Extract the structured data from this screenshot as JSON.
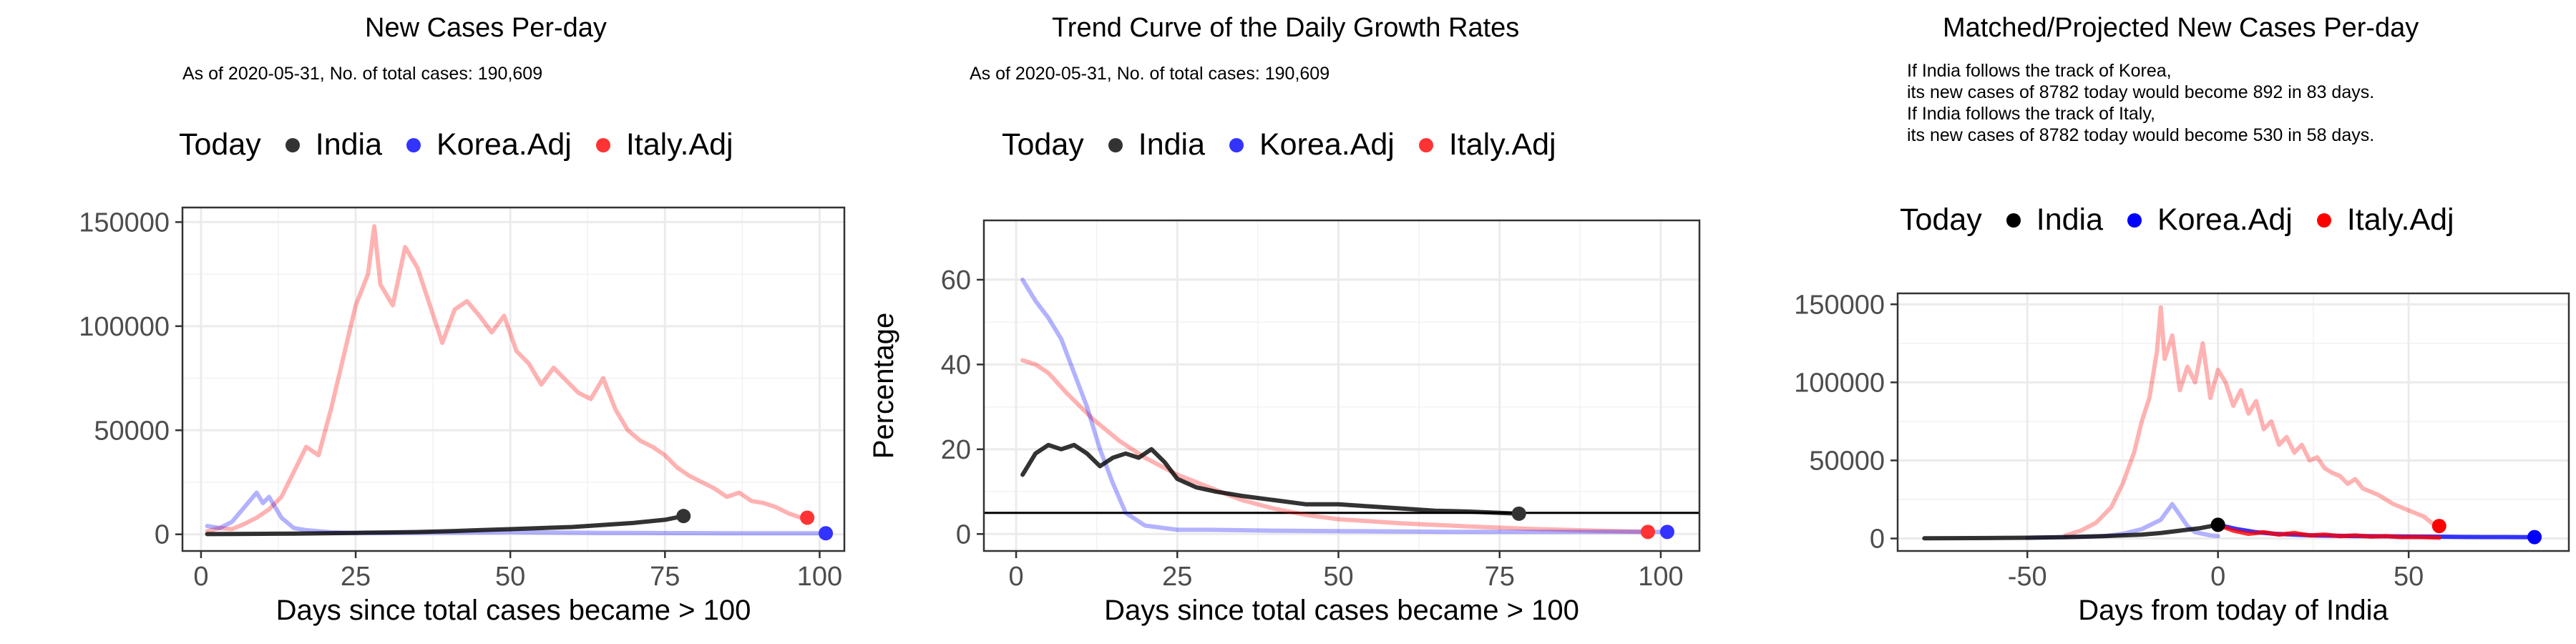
{
  "panels": [
    {
      "title": "New Cases Per-day",
      "subtitle": "As of 2020-05-31, No. of total cases: 190,609",
      "legend_title": "Today",
      "legend": [
        "India",
        "Korea.Adj",
        "Italy.Adj"
      ]
    },
    {
      "title": "Trend Curve of the Daily Growth Rates",
      "subtitle": "As of 2020-05-31, No. of total cases: 190,609",
      "legend_title": "Today",
      "legend": [
        "India",
        "Korea.Adj",
        "Italy.Adj"
      ]
    },
    {
      "title": "Matched/Projected New Cases Per-day",
      "subtitle_lines": [
        "If India follows the track of Korea,",
        "its new cases of 8782 today would become 892 in 83 days.",
        "If India follows the track of Italy,",
        "its new cases of 8782 today would become 530 in 58 days."
      ],
      "legend_title": "Today",
      "legend": [
        "India",
        "Korea.Adj",
        "Italy.Adj"
      ]
    }
  ],
  "colors": {
    "india": "#000000",
    "korea": "#0000ff",
    "italy": "#ff0000",
    "india_dot_panel12": "#333333",
    "korea_dot_panel12": "#3333ff",
    "italy_dot_panel12": "#ff3333",
    "grid": "#ebebeb",
    "tick_text": "#4d4d4d"
  },
  "chart_data": [
    {
      "type": "line",
      "title": "New Cases Per-day",
      "xlabel": "Days since total cases became > 100",
      "ylabel": "",
      "xlim": [
        -3,
        104
      ],
      "ylim": [
        -8000,
        157000
      ],
      "xticks": [
        0,
        25,
        50,
        75,
        100
      ],
      "yticks": [
        0,
        50000,
        100000,
        150000
      ],
      "ytick_labels": [
        "0",
        "50000",
        "100000",
        "150000"
      ],
      "grid": true,
      "legend": "top",
      "series": [
        {
          "name": "Italy.Adj",
          "color": "#ff0000",
          "opacity": 0.3,
          "x": [
            1,
            3,
            5,
            7,
            9,
            11,
            13,
            15,
            17,
            19,
            21,
            23,
            25,
            27,
            28,
            29,
            31,
            33,
            35,
            37,
            39,
            41,
            43,
            45,
            47,
            49,
            51,
            53,
            55,
            57,
            59,
            61,
            63,
            65,
            67,
            69,
            71,
            73,
            75,
            77,
            79,
            81,
            83,
            85,
            87,
            89,
            91,
            93,
            95,
            97
          ],
          "y": [
            1500,
            3000,
            2500,
            5000,
            8000,
            12000,
            18000,
            30000,
            42000,
            38000,
            60000,
            85000,
            110000,
            125000,
            148000,
            120000,
            110000,
            138000,
            128000,
            110000,
            92000,
            108000,
            112000,
            105000,
            97000,
            105000,
            88000,
            82000,
            72000,
            80000,
            74000,
            68000,
            65000,
            75000,
            60000,
            50000,
            45000,
            42000,
            38000,
            32000,
            28000,
            25000,
            22000,
            18000,
            20000,
            16000,
            15000,
            13000,
            10000,
            8000
          ]
        },
        {
          "name": "Korea.Adj",
          "color": "#0000ff",
          "opacity": 0.3,
          "x": [
            1,
            3,
            5,
            7,
            9,
            10,
            11,
            13,
            15,
            17,
            19,
            21,
            23,
            25,
            30,
            35,
            40,
            45,
            50,
            55,
            60,
            65,
            70,
            75,
            80,
            85,
            90,
            95,
            101
          ],
          "y": [
            4000,
            3000,
            6000,
            13000,
            20000,
            15000,
            18000,
            8000,
            3000,
            2000,
            1500,
            1000,
            800,
            700,
            600,
            700,
            800,
            900,
            1000,
            900,
            800,
            700,
            700,
            600,
            600,
            500,
            500,
            500,
            500
          ]
        },
        {
          "name": "India",
          "color": "#000000",
          "opacity": 0.8,
          "x": [
            1,
            5,
            10,
            15,
            20,
            25,
            30,
            35,
            40,
            45,
            50,
            55,
            60,
            65,
            70,
            75,
            78
          ],
          "y": [
            100,
            150,
            250,
            350,
            500,
            700,
            900,
            1100,
            1500,
            2000,
            2500,
            3000,
            3500,
            4500,
            5500,
            7000,
            8782
          ]
        }
      ],
      "today_points": [
        {
          "name": "India",
          "x": 78,
          "y": 8782
        },
        {
          "name": "Italy.Adj",
          "x": 98,
          "y": 8000
        },
        {
          "name": "Korea.Adj",
          "x": 101,
          "y": 500
        }
      ]
    },
    {
      "type": "line",
      "title": "Trend Curve of the Daily Growth Rates",
      "xlabel": "Days since total cases became > 100",
      "ylabel": "Percentage",
      "xlim": [
        -5,
        106
      ],
      "ylim": [
        -4,
        74
      ],
      "xticks": [
        0,
        25,
        50,
        75,
        100
      ],
      "yticks": [
        0,
        20,
        40,
        60
      ],
      "ytick_labels": [
        "0",
        "20",
        "40",
        "60"
      ],
      "hline": 5,
      "grid": true,
      "legend": "top",
      "series": [
        {
          "name": "Italy.Adj",
          "color": "#ff0000",
          "opacity": 0.3,
          "x": [
            1,
            3,
            5,
            8,
            12,
            16,
            20,
            25,
            30,
            35,
            40,
            45,
            50,
            55,
            60,
            70,
            80,
            90,
            98
          ],
          "y": [
            41,
            40,
            38,
            33,
            27,
            22,
            18,
            14,
            11,
            8,
            6,
            4.5,
            3.5,
            3,
            2.5,
            1.8,
            1.2,
            0.8,
            0.5
          ]
        },
        {
          "name": "Korea.Adj",
          "color": "#0000ff",
          "opacity": 0.3,
          "x": [
            1,
            3,
            5,
            7,
            9,
            11,
            13,
            15,
            17,
            20,
            25,
            30,
            40,
            50,
            60,
            70,
            80,
            90,
            101
          ],
          "y": [
            60,
            55,
            51,
            46,
            38,
            30,
            20,
            12,
            5,
            2,
            1,
            1,
            0.8,
            0.7,
            0.6,
            0.5,
            0.5,
            0.5,
            0.5
          ]
        },
        {
          "name": "India",
          "color": "#000000",
          "opacity": 0.8,
          "x": [
            1,
            3,
            5,
            7,
            9,
            11,
            13,
            15,
            17,
            19,
            21,
            23,
            25,
            28,
            31,
            35,
            40,
            45,
            50,
            55,
            60,
            65,
            70,
            75,
            78
          ],
          "y": [
            14,
            19,
            21,
            20,
            21,
            19,
            16,
            18,
            19,
            18,
            20,
            17,
            13,
            11,
            10,
            9,
            8,
            7,
            7,
            6.5,
            6,
            5.5,
            5.3,
            5,
            4.8
          ]
        }
      ],
      "today_points": [
        {
          "name": "India",
          "x": 78,
          "y": 4.8
        },
        {
          "name": "Italy.Adj",
          "x": 98,
          "y": 0.5
        },
        {
          "name": "Korea.Adj",
          "x": 101,
          "y": 0.5
        }
      ]
    },
    {
      "type": "line",
      "title": "Matched/Projected New Cases Per-day",
      "xlabel": "Days from today of India",
      "ylabel": "",
      "xlim": [
        -84,
        92
      ],
      "ylim": [
        -8000,
        157000
      ],
      "xticks": [
        -50,
        0,
        50
      ],
      "yticks": [
        0,
        50000,
        100000,
        150000
      ],
      "ytick_labels": [
        "0",
        "50000",
        "100000",
        "150000"
      ],
      "grid": true,
      "legend": "top",
      "series": [
        {
          "name": "Italy.Adj",
          "color": "#ff0000",
          "opacity": 0.3,
          "x": [
            -40,
            -36,
            -32,
            -28,
            -25,
            -22,
            -20,
            -18,
            -16,
            -15,
            -14,
            -12,
            -10,
            -8,
            -6,
            -4,
            -2,
            0,
            2,
            4,
            6,
            8,
            10,
            12,
            14,
            16,
            18,
            20,
            22,
            24,
            26,
            28,
            30,
            32,
            34,
            36,
            38,
            40,
            42,
            44,
            46,
            48,
            50,
            52,
            54,
            56,
            58
          ],
          "y": [
            2000,
            5000,
            10000,
            20000,
            35000,
            55000,
            75000,
            90000,
            120000,
            148000,
            115000,
            130000,
            95000,
            110000,
            100000,
            125000,
            90000,
            108000,
            100000,
            85000,
            95000,
            80000,
            88000,
            70000,
            75000,
            60000,
            65000,
            55000,
            60000,
            50000,
            52000,
            45000,
            42000,
            40000,
            35000,
            38000,
            32000,
            30000,
            28000,
            25000,
            22000,
            20000,
            18000,
            16000,
            14000,
            10000,
            8000
          ]
        },
        {
          "name": "Korea.Adj",
          "color": "#0000ff",
          "opacity": 0.3,
          "x": [
            -50,
            -40,
            -30,
            -25,
            -20,
            -15,
            -12,
            -10,
            -8,
            -6,
            -4,
            -2,
            0
          ],
          "y": [
            500,
            800,
            1500,
            3000,
            6000,
            12000,
            22000,
            15000,
            8000,
            4000,
            3000,
            2000,
            1500
          ]
        },
        {
          "name": "Korea.Adj projected",
          "color": "#0000ff",
          "opacity": 0.8,
          "x": [
            0,
            5,
            10,
            15,
            20,
            25,
            30,
            35,
            40,
            45,
            50,
            55,
            60,
            65,
            70,
            75,
            80,
            83
          ],
          "y": [
            8782,
            6000,
            4000,
            3000,
            2500,
            2000,
            1800,
            1600,
            1500,
            1400,
            1300,
            1200,
            1100,
            1000,
            950,
            920,
            900,
            892
          ]
        },
        {
          "name": "Italy.Adj projected",
          "color": "#ff0000",
          "opacity": 0.8,
          "x": [
            0,
            4,
            8,
            12,
            16,
            20,
            24,
            28,
            32,
            36,
            40,
            44,
            48,
            52,
            56,
            58
          ],
          "y": [
            8782,
            5000,
            3000,
            4000,
            2500,
            3500,
            2000,
            2500,
            1500,
            2000,
            1200,
            1500,
            900,
            1000,
            700,
            530
          ]
        },
        {
          "name": "India",
          "color": "#000000",
          "opacity": 0.8,
          "x": [
            -77,
            -70,
            -60,
            -50,
            -40,
            -30,
            -20,
            -15,
            -10,
            -5,
            0
          ],
          "y": [
            100,
            200,
            300,
            500,
            900,
            1500,
            2500,
            3500,
            5000,
            6500,
            8782
          ]
        }
      ],
      "today_points": [
        {
          "name": "India",
          "x": 0,
          "y": 8782
        },
        {
          "name": "Italy.Adj",
          "x": 58,
          "y": 8000
        },
        {
          "name": "Korea.Adj",
          "x": 83,
          "y": 892
        }
      ]
    }
  ]
}
